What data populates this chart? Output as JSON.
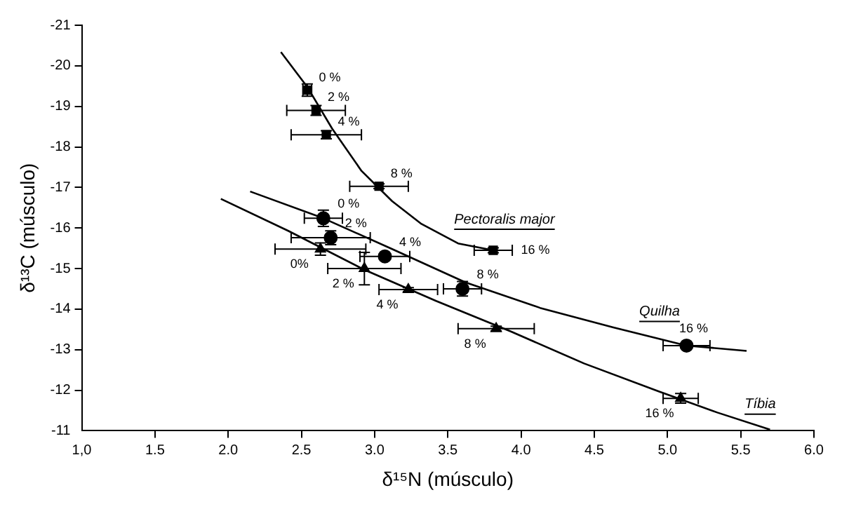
{
  "chart_data": {
    "type": "scatter",
    "xlabel": "δ¹⁵N (músculo)",
    "ylabel": "δ¹³C (músculo)",
    "xlim": [
      1,
      6
    ],
    "xticks": [
      {
        "value": 1,
        "label": "1,0"
      },
      1.5,
      {
        "value": 2,
        "label": "2.0"
      },
      2.5,
      {
        "value": 3,
        "label": "3.0"
      },
      3.5,
      {
        "value": 4,
        "label": "4.0"
      },
      4.5,
      {
        "value": 5,
        "label": "5.0"
      },
      5.5,
      {
        "value": 6,
        "label": "6.0"
      }
    ],
    "ylim": [
      -11,
      -21
    ],
    "yticks": [
      -11,
      -12,
      -13,
      -14,
      -15,
      -16,
      -17,
      -18,
      -19,
      -20,
      -21
    ],
    "grid": false,
    "legend": false,
    "series": [
      {
        "type": "scatter",
        "marker": "square",
        "color": "#000000",
        "x": [
          2.54,
          2.6,
          2.67,
          3.03,
          3.81
        ],
        "values": [
          -19.4,
          -18.9,
          -18.3,
          -17.03,
          -15.45
        ],
        "errors": [
          0.15,
          0.12,
          0.1,
          0.06,
          0.06
        ],
        "xerrors": [
          0.03,
          0.2,
          0.24,
          0.2,
          0.13
        ]
      },
      {
        "type": "scatter",
        "marker": "circle",
        "color": "#000000",
        "x": [
          2.65,
          2.7,
          3.07,
          3.6,
          5.13
        ],
        "values": [
          -16.24,
          -15.76,
          -15.3,
          -14.5,
          -13.1
        ],
        "errors": [
          0.2,
          0.17,
          0.06,
          0.18,
          0.04
        ],
        "xerrors": [
          0.13,
          0.27,
          0.17,
          0.13,
          0.16
        ]
      },
      {
        "type": "scatter",
        "marker": "triangle",
        "color": "#000000",
        "x": [
          2.63,
          2.93,
          3.23,
          3.83,
          5.09
        ],
        "values": [
          -15.48,
          -15.0,
          -14.48,
          -13.52,
          -11.8
        ],
        "errors": [
          0.15,
          0.4,
          0.05,
          0.06,
          0.12
        ],
        "xerrors": [
          0.31,
          0.25,
          0.2,
          0.26,
          0.12
        ]
      },
      {
        "type": "line",
        "name": "Pectoralis major",
        "color": "#000000",
        "marker": "none",
        "x": [
          2.36,
          2.54,
          2.71,
          2.91,
          3.12,
          3.32,
          3.57,
          3.81
        ],
        "values": [
          -20.34,
          -19.48,
          -18.45,
          -17.41,
          -16.66,
          -16.1,
          -15.62,
          -15.45
        ]
      },
      {
        "type": "line",
        "name": "Quilha",
        "color": "#000000",
        "marker": "none",
        "x": [
          2.15,
          2.65,
          3.12,
          3.62,
          4.13,
          4.63,
          5.13,
          5.54
        ],
        "values": [
          -16.9,
          -16.24,
          -15.48,
          -14.66,
          -14.03,
          -13.55,
          -13.1,
          -12.97
        ]
      },
      {
        "type": "line",
        "name": "Tíbia",
        "color": "#000000",
        "marker": "none",
        "x": [
          1.95,
          2.41,
          2.93,
          3.42,
          3.93,
          4.43,
          4.94,
          5.34,
          5.7
        ],
        "values": [
          -16.72,
          -15.93,
          -14.97,
          -14.2,
          -13.45,
          -12.66,
          -11.97,
          -11.45,
          -11.03
        ]
      }
    ],
    "annotations": [
      {
        "text": "0 %",
        "x": 2.54,
        "y": -19.4
      },
      {
        "text": "2 %",
        "x": 2.6,
        "y": -18.9
      },
      {
        "text": "4 %",
        "x": 2.67,
        "y": -18.3
      },
      {
        "text": "8 %",
        "x": 3.03,
        "y": -17.03
      },
      {
        "text": "16 %",
        "x": 3.81,
        "y": -15.45
      },
      {
        "text": "0 %",
        "x": 2.65,
        "y": -16.24
      },
      {
        "text": "2 %",
        "x": 2.7,
        "y": -15.76
      },
      {
        "text": "4 %",
        "x": 3.07,
        "y": -15.3
      },
      {
        "text": "8 %",
        "x": 3.6,
        "y": -14.5
      },
      {
        "text": "16 %",
        "x": 5.13,
        "y": -13.1
      },
      {
        "text": "0%",
        "x": 2.63,
        "y": -15.48
      },
      {
        "text": "2 %",
        "x": 2.93,
        "y": -15.0
      },
      {
        "text": "4 %",
        "x": 3.23,
        "y": -14.48
      },
      {
        "text": "8 %",
        "x": 3.83,
        "y": -13.52
      },
      {
        "text": "16 %",
        "x": 5.09,
        "y": -11.8
      }
    ]
  }
}
